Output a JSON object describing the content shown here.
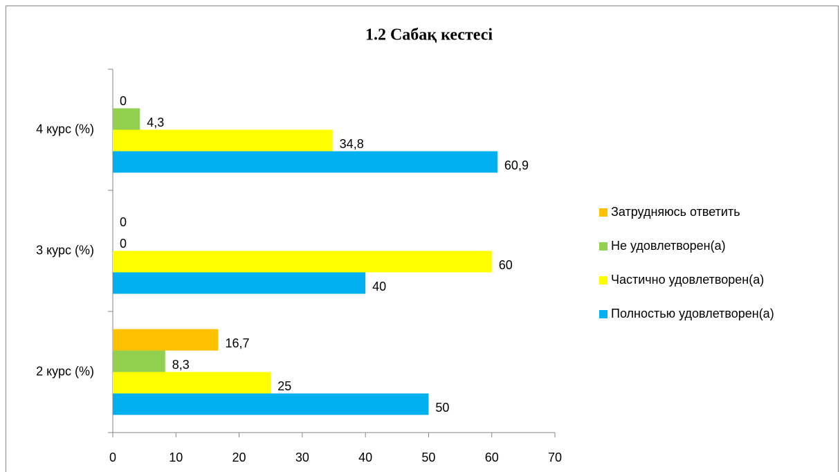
{
  "chart_data": {
    "type": "hbar",
    "title": "1.2 Сабақ кестесі",
    "categories": [
      "2 курс (%)",
      "3 курс (%)",
      "4 курс (%)"
    ],
    "series": [
      {
        "name": "Полностью удовлетворен(а)",
        "color": "#00b0f0",
        "values": [
          50,
          40,
          60.9
        ],
        "value_labels": [
          "50",
          "40",
          "60,9"
        ]
      },
      {
        "name": "Частично удовлетворен(а)",
        "color": "#ffff00",
        "values": [
          25,
          60,
          34.8
        ],
        "value_labels": [
          "25",
          "60",
          "34,8"
        ]
      },
      {
        "name": "Не удовлетворен(а)",
        "color": "#92d050",
        "values": [
          8.3,
          0,
          4.3
        ],
        "value_labels": [
          "8,3",
          "0",
          "4,3"
        ]
      },
      {
        "name": "Затрудняюсь ответить",
        "color": "#ffc000",
        "values": [
          16.7,
          0,
          0
        ],
        "value_labels": [
          "16,7",
          "0",
          "0"
        ]
      }
    ],
    "xlim": [
      0,
      70
    ],
    "xticks": [
      0,
      10,
      20,
      30,
      40,
      50,
      60,
      70
    ],
    "legend": "right"
  }
}
